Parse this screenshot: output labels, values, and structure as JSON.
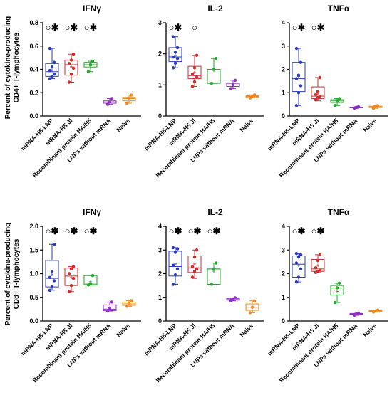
{
  "figure": {
    "ylabel_top": [
      "Percent of cytokine-producing",
      "CD4+ T-lymphocytes"
    ],
    "ylabel_bottom": [
      "Percent of cytokine-producing",
      "CD8+ T-lymphocytes"
    ]
  },
  "colors": [
    "#2b3bbf",
    "#d42a2a",
    "#22aa2a",
    "#8e2fc7",
    "#f08a1e"
  ],
  "chart_data": [
    {
      "type": "box",
      "title": "IFNγ",
      "row": 0,
      "col": 0,
      "categories": [
        "mRNA-H5-LNP",
        "mRNA-H5 Jl",
        "Recombinant protein HA/H5",
        "LNPs without mRNA",
        "Naive"
      ],
      "ylim": [
        0,
        0.8
      ],
      "yticks": [
        0,
        0.2,
        0.4,
        0.6,
        0.8
      ],
      "ytick_labels": [
        "0.0",
        "0.2",
        "0.4",
        "0.6",
        "0.8"
      ],
      "boxes": [
        {
          "min": 0.32,
          "q1": 0.34,
          "median": 0.38,
          "q3": 0.45,
          "max": 0.58,
          "mean": 0.39,
          "points": [
            0.32,
            0.34,
            0.36,
            0.39,
            0.42,
            0.46,
            0.58
          ]
        },
        {
          "min": 0.29,
          "q1": 0.35,
          "median": 0.44,
          "q3": 0.48,
          "max": 0.53,
          "mean": 0.42,
          "points": [
            0.29,
            0.36,
            0.41,
            0.45,
            0.48,
            0.53
          ]
        },
        {
          "min": 0.38,
          "q1": 0.42,
          "median": 0.44,
          "q3": 0.46,
          "max": 0.47,
          "mean": 0.43,
          "points": [
            0.38,
            0.44,
            0.47
          ]
        },
        {
          "min": 0.1,
          "q1": 0.11,
          "median": 0.12,
          "q3": 0.13,
          "max": 0.15,
          "mean": 0.12,
          "points": [
            0.1,
            0.12,
            0.15
          ]
        },
        {
          "min": 0.11,
          "q1": 0.13,
          "median": 0.15,
          "q3": 0.16,
          "max": 0.18,
          "mean": 0.15,
          "points": [
            0.11,
            0.15,
            0.18
          ]
        }
      ],
      "significance": [
        "○✱",
        "○✱",
        "○✱",
        "",
        ""
      ]
    },
    {
      "type": "box",
      "title": "IL-2",
      "row": 0,
      "col": 1,
      "categories": [
        "mRNA-H5-LNP",
        "mRNA-H5 Jl",
        "Recombinant protein HA/H5",
        "LNPs without mRNA",
        "Naive"
      ],
      "ylim": [
        0,
        3
      ],
      "yticks": [
        0,
        1,
        2,
        3
      ],
      "ytick_labels": [
        "0",
        "1",
        "2",
        "3"
      ],
      "boxes": [
        {
          "min": 1.55,
          "q1": 1.75,
          "median": 1.9,
          "q3": 2.2,
          "max": 2.55,
          "mean": 1.95,
          "points": [
            1.55,
            1.7,
            1.85,
            1.9,
            2.05,
            2.2,
            2.55
          ]
        },
        {
          "min": 0.95,
          "q1": 1.2,
          "median": 1.3,
          "q3": 1.6,
          "max": 1.95,
          "mean": 1.4,
          "points": [
            0.95,
            1.1,
            1.25,
            1.35,
            1.55,
            1.95
          ]
        },
        {
          "min": 1.05,
          "q1": 1.05,
          "median": 1.5,
          "q3": 1.5,
          "max": 1.85,
          "mean": 1.47,
          "points": [
            1.05,
            1.5,
            1.85
          ]
        },
        {
          "min": 0.88,
          "q1": 0.95,
          "median": 1.0,
          "q3": 1.05,
          "max": 1.15,
          "mean": 1.0,
          "points": [
            0.88,
            1.0,
            1.15
          ]
        },
        {
          "min": 0.58,
          "q1": 0.6,
          "median": 0.63,
          "q3": 0.65,
          "max": 0.68,
          "mean": 0.63,
          "points": [
            0.58,
            0.63,
            0.68
          ]
        }
      ],
      "significance": [
        "○✱",
        "○",
        "",
        "",
        ""
      ]
    },
    {
      "type": "box",
      "title": "TNFα",
      "row": 0,
      "col": 2,
      "categories": [
        "mRNA-H5-LNP",
        "mRNA-H5 Jl",
        "Recombinant protein HA/H5",
        "LNPs without mRNA",
        "Naive"
      ],
      "ylim": [
        0,
        4
      ],
      "yticks": [
        0,
        1,
        2,
        3,
        4
      ],
      "ytick_labels": [
        "0",
        "1",
        "2",
        "3",
        "4"
      ],
      "boxes": [
        {
          "min": 0.45,
          "q1": 1.05,
          "median": 1.6,
          "q3": 2.3,
          "max": 2.9,
          "mean": 1.7,
          "points": [
            0.45,
            1.0,
            1.3,
            1.6,
            1.75,
            2.3,
            2.9
          ]
        },
        {
          "min": 0.65,
          "q1": 0.75,
          "median": 0.85,
          "q3": 1.25,
          "max": 1.65,
          "mean": 0.95,
          "points": [
            0.7,
            0.78,
            0.85,
            0.92,
            1.05,
            1.65
          ]
        },
        {
          "min": 0.45,
          "q1": 0.58,
          "median": 0.65,
          "q3": 0.7,
          "max": 0.75,
          "mean": 0.62,
          "points": [
            0.45,
            0.65,
            0.75
          ]
        },
        {
          "min": 0.33,
          "q1": 0.35,
          "median": 0.37,
          "q3": 0.38,
          "max": 0.4,
          "mean": 0.37,
          "points": [
            0.33,
            0.37,
            0.4
          ]
        },
        {
          "min": 0.33,
          "q1": 0.36,
          "median": 0.4,
          "q3": 0.42,
          "max": 0.45,
          "mean": 0.4,
          "points": [
            0.33,
            0.4,
            0.45
          ]
        }
      ],
      "significance": [
        "○✱",
        "○✱",
        "",
        "",
        ""
      ]
    },
    {
      "type": "box",
      "title": "IFNγ",
      "row": 1,
      "col": 0,
      "categories": [
        "mRNA-H5-LNP",
        "mRNA-H5 Jl",
        "Recombinant protein HA/H5",
        "LNPs without mRNA",
        "Naive"
      ],
      "ylim": [
        0,
        2
      ],
      "yticks": [
        0,
        0.5,
        1,
        1.5,
        2
      ],
      "ytick_labels": [
        "0.0",
        "0.5",
        "1.0",
        "1.5",
        "2.0"
      ],
      "boxes": [
        {
          "min": 0.65,
          "q1": 0.72,
          "median": 0.9,
          "q3": 1.28,
          "max": 1.62,
          "mean": 0.98,
          "points": [
            0.65,
            0.72,
            0.85,
            0.92,
            1.05,
            1.62
          ]
        },
        {
          "min": 0.62,
          "q1": 0.75,
          "median": 0.95,
          "q3": 1.12,
          "max": 1.15,
          "mean": 0.92,
          "points": [
            0.62,
            0.75,
            0.9,
            1.0,
            1.1,
            1.15
          ]
        },
        {
          "min": 0.76,
          "q1": 0.76,
          "median": 0.78,
          "q3": 0.96,
          "max": 0.96,
          "mean": 0.83,
          "points": [
            0.76,
            0.78,
            0.96
          ]
        },
        {
          "min": 0.21,
          "q1": 0.22,
          "median": 0.25,
          "q3": 0.34,
          "max": 0.4,
          "mean": 0.28,
          "points": [
            0.21,
            0.25,
            0.4
          ]
        },
        {
          "min": 0.31,
          "q1": 0.33,
          "median": 0.36,
          "q3": 0.4,
          "max": 0.43,
          "mean": 0.36,
          "points": [
            0.31,
            0.36,
            0.43
          ]
        }
      ],
      "significance": [
        "○✱",
        "○✱",
        "○✱",
        "",
        ""
      ]
    },
    {
      "type": "box",
      "title": "IL-2",
      "row": 1,
      "col": 1,
      "categories": [
        "mRNA-H5-LNP",
        "mRNA-H5 Jl",
        "Recombinant protein HA/H5",
        "LNPs without mRNA",
        "Naive"
      ],
      "ylim": [
        0,
        4
      ],
      "yticks": [
        0,
        1,
        2,
        3,
        4
      ],
      "ytick_labels": [
        "0",
        "1",
        "2",
        "3",
        "4"
      ],
      "boxes": [
        {
          "min": 1.55,
          "q1": 1.9,
          "median": 2.3,
          "q3": 2.95,
          "max": 3.1,
          "mean": 2.4,
          "points": [
            1.55,
            1.95,
            2.2,
            2.35,
            2.9,
            3.05,
            3.1
          ]
        },
        {
          "min": 1.8,
          "q1": 2.05,
          "median": 2.25,
          "q3": 2.75,
          "max": 3.0,
          "mean": 2.4,
          "points": [
            1.85,
            2.1,
            2.2,
            2.3,
            2.7,
            3.0
          ]
        },
        {
          "min": 1.55,
          "q1": 1.55,
          "median": 2.2,
          "q3": 2.2,
          "max": 2.45,
          "mean": 2.1,
          "points": [
            1.55,
            2.2,
            2.45
          ]
        },
        {
          "min": 0.85,
          "q1": 0.88,
          "median": 0.93,
          "q3": 0.96,
          "max": 0.98,
          "mean": 0.92,
          "points": [
            0.85,
            0.93,
            0.98
          ]
        },
        {
          "min": 0.35,
          "q1": 0.45,
          "median": 0.58,
          "q3": 0.72,
          "max": 0.85,
          "mean": 0.59,
          "points": [
            0.35,
            0.58,
            0.85
          ]
        }
      ],
      "significance": [
        "○✱",
        "○✱",
        "○✱",
        "",
        ""
      ]
    },
    {
      "type": "box",
      "title": "TNFα",
      "row": 1,
      "col": 2,
      "categories": [
        "mRNA-H5-LNP",
        "mRNA-H5 Jl",
        "Recombinant protein HA/H5",
        "LNPs without mRNA",
        "Naive"
      ],
      "ylim": [
        0,
        4
      ],
      "yticks": [
        0,
        1,
        2,
        3,
        4
      ],
      "ytick_labels": [
        "0",
        "1",
        "2",
        "3",
        "4"
      ],
      "boxes": [
        {
          "min": 1.65,
          "q1": 1.85,
          "median": 2.4,
          "q3": 2.75,
          "max": 2.85,
          "mean": 2.35,
          "points": [
            1.65,
            1.85,
            2.2,
            2.45,
            2.7,
            2.8,
            2.85
          ]
        },
        {
          "min": 2.05,
          "q1": 2.1,
          "median": 2.2,
          "q3": 2.6,
          "max": 2.8,
          "mean": 2.35,
          "points": [
            2.05,
            2.1,
            2.15,
            2.25,
            2.55,
            2.8
          ]
        },
        {
          "min": 0.78,
          "q1": 1.1,
          "median": 1.4,
          "q3": 1.5,
          "max": 1.6,
          "mean": 1.25,
          "points": [
            0.78,
            1.4,
            1.6
          ]
        },
        {
          "min": 0.24,
          "q1": 0.27,
          "median": 0.3,
          "q3": 0.32,
          "max": 0.33,
          "mean": 0.3,
          "points": [
            0.24,
            0.3,
            0.33
          ]
        },
        {
          "min": 0.38,
          "q1": 0.4,
          "median": 0.42,
          "q3": 0.44,
          "max": 0.46,
          "mean": 0.42,
          "points": [
            0.38,
            0.42,
            0.46
          ]
        }
      ],
      "significance": [
        "○✱",
        "○✱",
        "",
        "",
        ""
      ]
    }
  ]
}
